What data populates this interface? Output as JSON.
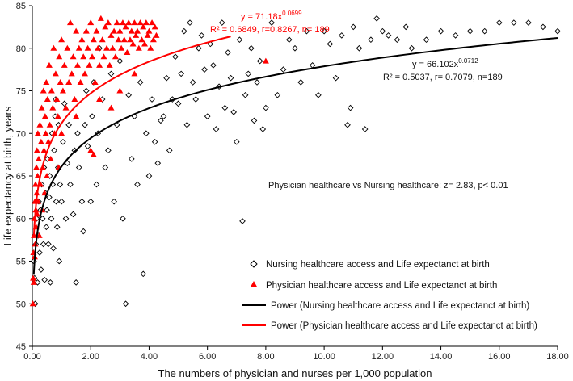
{
  "chart_data": {
    "type": "scatter",
    "xlabel": "The numbers of physician and nurses per 1,000 population",
    "ylabel": "Life expectancy at birth, years",
    "xlim": [
      0,
      18
    ],
    "ylim": [
      45,
      85
    ],
    "x_ticks": [
      "0.00",
      "2.00",
      "4.00",
      "6.00",
      "8.00",
      "10.00",
      "12.00",
      "14.00",
      "16.00",
      "18.00"
    ],
    "y_ticks": [
      "45",
      "50",
      "55",
      "60",
      "65",
      "70",
      "75",
      "80",
      "85"
    ],
    "grid": false,
    "colors": {
      "nursing": "#000000",
      "physician": "#ff0000"
    },
    "annotations": {
      "physician_eq_base": "y = 71.18x",
      "physician_eq_exp": "0.0699",
      "physician_stats": "R² = 0.6849, r=0.8267, n= 189",
      "nursing_eq_base": "y = 66.102x",
      "nursing_eq_exp": "0.0712",
      "nursing_stats": "R² = 0.5037, r= 0.7079, n=189",
      "comparison": "Physician healthcare vs Nursing healthcare: z= 2.83, p< 0.01"
    },
    "legend": [
      "Nursing healthcare access and Life expectanct at birth",
      "Physician healthcare access and Life expectanct at birth",
      "Power (Nursing healthcare access and Life expectanct at birth)",
      "Power (Physician healthcare access and Life expectanct at birth)"
    ],
    "series": [
      {
        "name": "Nursing healthcare access and Life expectanct at birth",
        "marker": "diamond-open",
        "points": [
          [
            0.05,
            55
          ],
          [
            0.08,
            53
          ],
          [
            0.1,
            50
          ],
          [
            0.12,
            57
          ],
          [
            0.15,
            60
          ],
          [
            0.18,
            52.5
          ],
          [
            0.2,
            58
          ],
          [
            0.22,
            62
          ],
          [
            0.25,
            56
          ],
          [
            0.28,
            61
          ],
          [
            0.3,
            54
          ],
          [
            0.32,
            64
          ],
          [
            0.35,
            60
          ],
          [
            0.38,
            57
          ],
          [
            0.4,
            66
          ],
          [
            0.42,
            52.8
          ],
          [
            0.45,
            63
          ],
          [
            0.48,
            59
          ],
          [
            0.5,
            61
          ],
          [
            0.52,
            67
          ],
          [
            0.55,
            57
          ],
          [
            0.58,
            62.5
          ],
          [
            0.6,
            65
          ],
          [
            0.62,
            52.5
          ],
          [
            0.65,
            60
          ],
          [
            0.68,
            70
          ],
          [
            0.7,
            64
          ],
          [
            0.72,
            56.5
          ],
          [
            0.75,
            68
          ],
          [
            0.78,
            72
          ],
          [
            0.8,
            74
          ],
          [
            0.82,
            62
          ],
          [
            0.85,
            59
          ],
          [
            0.88,
            66
          ],
          [
            0.9,
            71
          ],
          [
            0.92,
            55
          ],
          [
            0.95,
            64
          ],
          [
            1.0,
            62
          ],
          [
            1.05,
            69
          ],
          [
            1.1,
            73.5
          ],
          [
            1.15,
            60
          ],
          [
            1.2,
            66.5
          ],
          [
            1.25,
            71
          ],
          [
            1.3,
            64
          ],
          [
            1.4,
            60.5
          ],
          [
            1.45,
            68
          ],
          [
            1.5,
            52.5
          ],
          [
            1.55,
            70
          ],
          [
            1.6,
            66
          ],
          [
            1.7,
            62
          ],
          [
            1.75,
            58.5
          ],
          [
            1.8,
            71
          ],
          [
            1.85,
            75
          ],
          [
            1.9,
            68.5
          ],
          [
            2.0,
            62
          ],
          [
            2.05,
            72
          ],
          [
            2.1,
            76
          ],
          [
            2.2,
            64
          ],
          [
            2.25,
            70
          ],
          [
            2.3,
            80
          ],
          [
            2.4,
            74
          ],
          [
            2.5,
            66
          ],
          [
            2.6,
            68
          ],
          [
            2.7,
            77
          ],
          [
            2.8,
            62
          ],
          [
            2.9,
            71
          ],
          [
            3.0,
            78.5
          ],
          [
            3.1,
            60
          ],
          [
            3.2,
            50
          ],
          [
            3.3,
            74.5
          ],
          [
            3.4,
            67
          ],
          [
            3.5,
            72
          ],
          [
            3.6,
            64
          ],
          [
            3.7,
            76
          ],
          [
            3.8,
            53.5
          ],
          [
            3.9,
            70
          ],
          [
            4.0,
            65
          ],
          [
            4.1,
            74
          ],
          [
            4.2,
            69
          ],
          [
            4.3,
            66.5
          ],
          [
            4.4,
            71.5
          ],
          [
            4.5,
            72
          ],
          [
            4.6,
            76.5
          ],
          [
            4.7,
            68
          ],
          [
            4.8,
            74
          ],
          [
            4.9,
            79
          ],
          [
            5.0,
            73.5
          ],
          [
            5.1,
            77
          ],
          [
            5.2,
            82
          ],
          [
            5.3,
            71
          ],
          [
            5.4,
            83
          ],
          [
            5.5,
            76
          ],
          [
            5.6,
            74
          ],
          [
            5.7,
            80
          ],
          [
            5.8,
            81.5
          ],
          [
            5.9,
            77.5
          ],
          [
            6.0,
            72
          ],
          [
            6.1,
            80.5
          ],
          [
            6.2,
            78
          ],
          [
            6.3,
            70.5
          ],
          [
            6.4,
            75.5
          ],
          [
            6.5,
            83
          ],
          [
            6.6,
            73
          ],
          [
            6.7,
            79.5
          ],
          [
            6.8,
            76.5
          ],
          [
            6.9,
            72.5
          ],
          [
            7.0,
            69
          ],
          [
            7.1,
            81
          ],
          [
            7.2,
            59.7
          ],
          [
            7.3,
            74.5
          ],
          [
            7.4,
            77
          ],
          [
            7.5,
            80
          ],
          [
            7.6,
            71.5
          ],
          [
            7.7,
            76
          ],
          [
            7.8,
            78.5
          ],
          [
            7.9,
            70.5
          ],
          [
            8.0,
            73
          ],
          [
            8.2,
            83
          ],
          [
            8.4,
            74.5
          ],
          [
            8.6,
            77.5
          ],
          [
            8.8,
            81
          ],
          [
            9.0,
            80
          ],
          [
            9.2,
            76
          ],
          [
            9.4,
            82
          ],
          [
            9.6,
            78
          ],
          [
            9.8,
            74.5
          ],
          [
            10.0,
            82
          ],
          [
            10.2,
            80.5
          ],
          [
            10.4,
            76.5
          ],
          [
            10.6,
            81.5
          ],
          [
            10.8,
            71
          ],
          [
            10.9,
            73
          ],
          [
            11.0,
            82.5
          ],
          [
            11.2,
            80
          ],
          [
            11.4,
            70.5
          ],
          [
            11.6,
            81
          ],
          [
            11.8,
            83.5
          ],
          [
            12.0,
            82
          ],
          [
            12.2,
            81.5
          ],
          [
            12.5,
            81
          ],
          [
            12.8,
            82.5
          ],
          [
            13.0,
            80
          ],
          [
            13.5,
            81
          ],
          [
            14.0,
            82
          ],
          [
            14.5,
            81.5
          ],
          [
            15.0,
            82
          ],
          [
            15.5,
            82
          ],
          [
            16.0,
            83
          ],
          [
            16.5,
            83
          ],
          [
            17.0,
            83
          ],
          [
            17.5,
            82.5
          ],
          [
            18.0,
            82
          ]
        ]
      },
      {
        "name": "Physician healthcare access and Life expectanct at birth",
        "marker": "triangle-filled",
        "points": [
          [
            0.02,
            50
          ],
          [
            0.03,
            53
          ],
          [
            0.04,
            56
          ],
          [
            0.05,
            52.5
          ],
          [
            0.06,
            58
          ],
          [
            0.07,
            60
          ],
          [
            0.08,
            55.5
          ],
          [
            0.09,
            62
          ],
          [
            0.1,
            57
          ],
          [
            0.11,
            64
          ],
          [
            0.12,
            61
          ],
          [
            0.13,
            59
          ],
          [
            0.14,
            66
          ],
          [
            0.15,
            63
          ],
          [
            0.16,
            68
          ],
          [
            0.17,
            60.5
          ],
          [
            0.18,
            65
          ],
          [
            0.19,
            70
          ],
          [
            0.2,
            62
          ],
          [
            0.22,
            67
          ],
          [
            0.24,
            58
          ],
          [
            0.26,
            71
          ],
          [
            0.28,
            64
          ],
          [
            0.3,
            69
          ],
          [
            0.32,
            73
          ],
          [
            0.34,
            61
          ],
          [
            0.36,
            66
          ],
          [
            0.38,
            75
          ],
          [
            0.4,
            68
          ],
          [
            0.42,
            63
          ],
          [
            0.44,
            72
          ],
          [
            0.46,
            70
          ],
          [
            0.48,
            76
          ],
          [
            0.5,
            65
          ],
          [
            0.52,
            74
          ],
          [
            0.55,
            69
          ],
          [
            0.58,
            78
          ],
          [
            0.6,
            71
          ],
          [
            0.63,
            67
          ],
          [
            0.66,
            75
          ],
          [
            0.7,
            73
          ],
          [
            0.73,
            80
          ],
          [
            0.76,
            70
          ],
          [
            0.8,
            77
          ],
          [
            0.84,
            74
          ],
          [
            0.88,
            72
          ],
          [
            0.92,
            79
          ],
          [
            0.96,
            76
          ],
          [
            1.0,
            81
          ],
          [
            1.05,
            75
          ],
          [
            1.1,
            78
          ],
          [
            1.15,
            73
          ],
          [
            1.2,
            80
          ],
          [
            1.25,
            76
          ],
          [
            1.3,
            83
          ],
          [
            1.35,
            77
          ],
          [
            1.4,
            79
          ],
          [
            1.45,
            74
          ],
          [
            1.5,
            82
          ],
          [
            1.55,
            78
          ],
          [
            1.6,
            80
          ],
          [
            1.65,
            76
          ],
          [
            1.7,
            81
          ],
          [
            1.75,
            79
          ],
          [
            1.8,
            77
          ],
          [
            1.85,
            82
          ],
          [
            1.9,
            80
          ],
          [
            1.95,
            78
          ],
          [
            2.0,
            83
          ],
          [
            2.05,
            79
          ],
          [
            2.1,
            81
          ],
          [
            2.15,
            76
          ],
          [
            2.2,
            82
          ],
          [
            2.25,
            80
          ],
          [
            2.3,
            78
          ],
          [
            2.35,
            83.5
          ],
          [
            2.4,
            81
          ],
          [
            2.45,
            79
          ],
          [
            2.5,
            82.5
          ],
          [
            2.55,
            80
          ],
          [
            2.6,
            83
          ],
          [
            2.65,
            78
          ],
          [
            2.7,
            81.5
          ],
          [
            2.75,
            80
          ],
          [
            2.8,
            82
          ],
          [
            2.85,
            79
          ],
          [
            2.9,
            83
          ],
          [
            2.95,
            81
          ],
          [
            3.0,
            82
          ],
          [
            3.05,
            80
          ],
          [
            3.1,
            83
          ],
          [
            3.15,
            81
          ],
          [
            3.2,
            82.5
          ],
          [
            3.25,
            79.5
          ],
          [
            3.3,
            83
          ],
          [
            3.35,
            81
          ],
          [
            3.4,
            82
          ],
          [
            3.45,
            80.5
          ],
          [
            3.5,
            83
          ],
          [
            3.55,
            81.5
          ],
          [
            3.6,
            82
          ],
          [
            3.65,
            80
          ],
          [
            3.7,
            83
          ],
          [
            3.75,
            81
          ],
          [
            3.8,
            82.5
          ],
          [
            3.85,
            80.5
          ],
          [
            3.9,
            83
          ],
          [
            3.95,
            81.5
          ],
          [
            4.0,
            82
          ],
          [
            4.05,
            80
          ],
          [
            4.1,
            83
          ],
          [
            4.15,
            81
          ],
          [
            4.2,
            82.5
          ],
          [
            4.25,
            81.5
          ],
          [
            2.0,
            68
          ],
          [
            2.3,
            74
          ],
          [
            1.0,
            70
          ],
          [
            1.5,
            72
          ],
          [
            0.9,
            66
          ],
          [
            3.0,
            75
          ],
          [
            3.5,
            77
          ],
          [
            2.7,
            73
          ],
          [
            2.1,
            67.5
          ],
          [
            8.0,
            78.5
          ]
        ]
      }
    ],
    "fits": [
      {
        "name": "Power (Nursing healthcare access and Life expectanct at birth)",
        "a": 66.102,
        "b": 0.0712,
        "x_range": [
          0.05,
          18
        ]
      },
      {
        "name": "Power (Physician healthcare access and Life expectanct at birth)",
        "a": 71.18,
        "b": 0.0699,
        "x_range": [
          0.05,
          6.8
        ]
      }
    ]
  }
}
